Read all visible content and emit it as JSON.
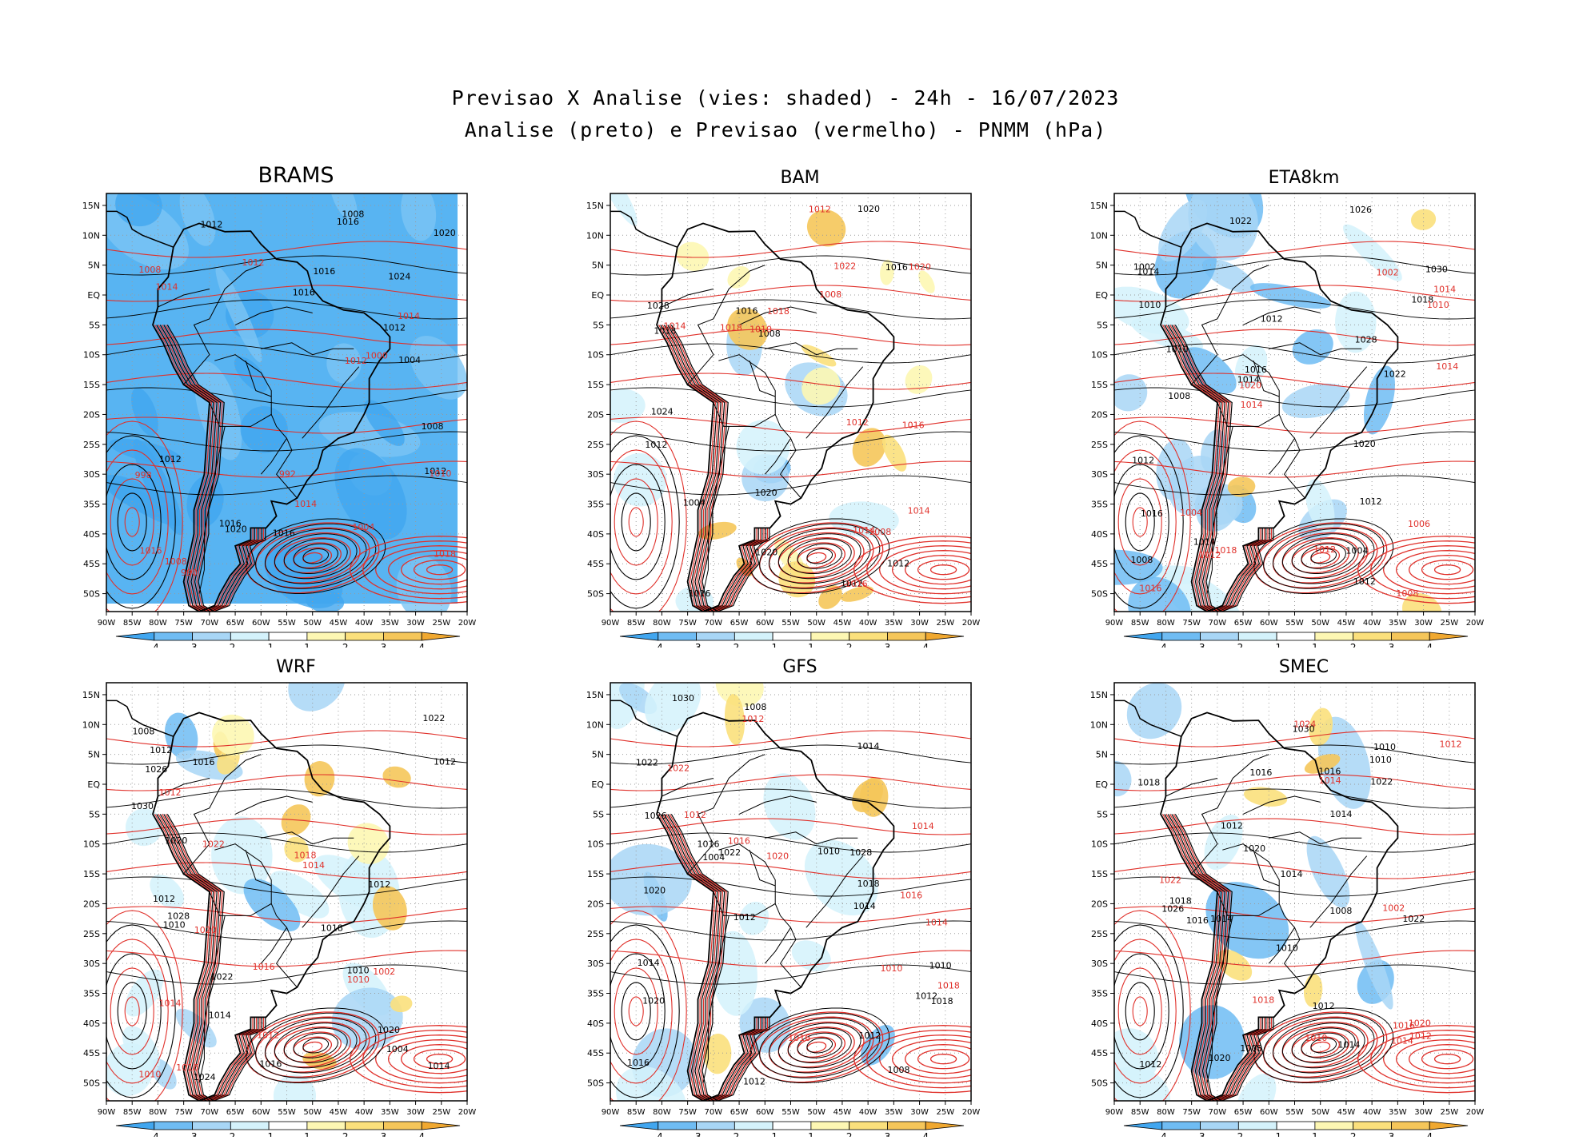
{
  "header": {
    "title_line1": "Previsao X Analise (vies: shaded) - 24h - 16/07/2023",
    "title_line2": "Analise (preto) e Previsao (vermelho) - PNMM (hPa)"
  },
  "axes": {
    "lat_labels": [
      "15N",
      "10N",
      "5N",
      "EQ",
      "5S",
      "10S",
      "15S",
      "20S",
      "25S",
      "30S",
      "35S",
      "40S",
      "45S",
      "50S"
    ],
    "lon_labels": [
      "90W",
      "85W",
      "80W",
      "75W",
      "70W",
      "65W",
      "60W",
      "55W",
      "50W",
      "45W",
      "40W",
      "35W",
      "30W",
      "25W",
      "20W"
    ]
  },
  "colorbar": {
    "labels": [
      "-4",
      "-3",
      "-2",
      "-1",
      "1",
      "2",
      "3",
      "4"
    ],
    "colors": [
      "#41a6ef",
      "#6fbcf3",
      "#a8d6f6",
      "#d4f2fb",
      "#ffffff",
      "#fdf7b3",
      "#fbe07c",
      "#f5c65a",
      "#f0a830"
    ]
  },
  "colors": {
    "analysis_contour": "#000000",
    "forecast_contour": "#e0302a",
    "grid": "#9a9a9a"
  },
  "panels": [
    {
      "name": "BRAMS",
      "labels_black": [
        "1008",
        "1012",
        "1016",
        "1020",
        "1024",
        "1012",
        "1016",
        "1016",
        "1012",
        "1004",
        "1008",
        "1012",
        "1016",
        "1020",
        "1016"
      ],
      "labels_red": [
        "1004",
        "1008",
        "1008",
        "1010",
        "1012",
        "1014",
        "1014",
        "1016",
        "998",
        "1000",
        "992",
        "990",
        "1018",
        "1012",
        "1014"
      ]
    },
    {
      "name": "BAM",
      "labels_black": [
        "1012",
        "1012",
        "1016",
        "1020",
        "1024",
        "1028",
        "1016",
        "1018",
        "1020",
        "1012",
        "1008",
        "1004",
        "1016",
        "1020"
      ],
      "labels_red": [
        "1014",
        "1008",
        "1010",
        "1012",
        "1014",
        "1016",
        "1018",
        "1020",
        "1022",
        "1018",
        "1014",
        "1008",
        "1012",
        "1016"
      ]
    },
    {
      "name": "ETA8km",
      "labels_black": [
        "1012",
        "1010",
        "1014",
        "1008",
        "1012",
        "1016",
        "1014",
        "1018",
        "1020",
        "1022",
        "1030",
        "1028",
        "1026",
        "1014",
        "1012",
        "1010",
        "1012",
        "1016",
        "1008",
        "1004",
        "1002",
        "1022"
      ],
      "labels_red": [
        "1012",
        "1014",
        "1010",
        "1016",
        "1018",
        "1020",
        "1014",
        "1012",
        "1008",
        "1006",
        "1004",
        "1002",
        "1014"
      ]
    },
    {
      "name": "WRF",
      "labels_black": [
        "1012",
        "1014",
        "1010",
        "1008",
        "1012",
        "1016",
        "1018",
        "1020",
        "1022",
        "1024",
        "1026",
        "1030",
        "1028",
        "1012",
        "1014",
        "1010",
        "1016",
        "1020",
        "1022",
        "1012",
        "1004"
      ],
      "labels_red": [
        "1016",
        "1014",
        "1012",
        "1010",
        "1018",
        "1020",
        "1022",
        "1016",
        "1014",
        "1012",
        "1010",
        "1002"
      ]
    },
    {
      "name": "GFS",
      "labels_black": [
        "1012",
        "1014",
        "1008",
        "1010",
        "1012",
        "1014",
        "1016",
        "1018",
        "1020",
        "1022",
        "1026",
        "1030",
        "1028",
        "1014",
        "1012",
        "1010",
        "1016",
        "1018",
        "1020",
        "1022",
        "1012",
        "1008",
        "1004"
      ],
      "labels_red": [
        "1016",
        "1014",
        "1012",
        "1010",
        "1018",
        "1020",
        "1016",
        "1014",
        "1012",
        "1016",
        "1022"
      ]
    },
    {
      "name": "SMEC",
      "labels_black": [
        "1012",
        "1014",
        "1008",
        "1010",
        "1012",
        "1014",
        "1016",
        "1018",
        "1020",
        "1022",
        "1026",
        "1030",
        "1014",
        "1012",
        "1010",
        "1016",
        "1018",
        "1020",
        "1022",
        "1008",
        "1016",
        "1014",
        "1010"
      ],
      "labels_red": [
        "1014",
        "1012",
        "1016",
        "1018",
        "1020",
        "1022",
        "1014",
        "1012",
        "1010",
        "1002",
        "1024"
      ]
    }
  ]
}
